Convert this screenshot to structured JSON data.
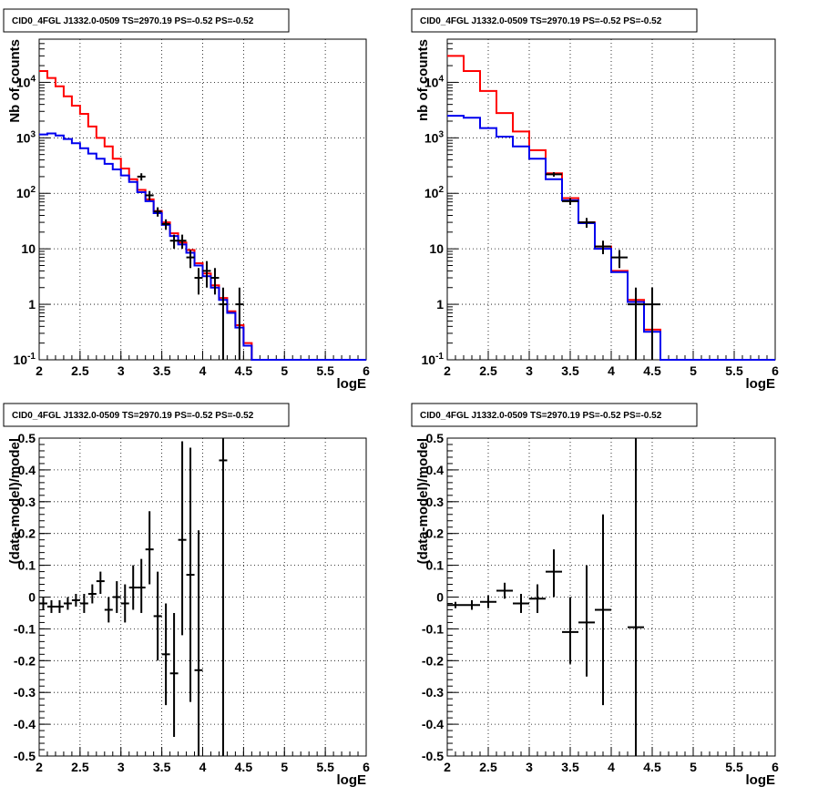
{
  "chart_data": [
    {
      "type": "histogram",
      "title": "CID0_4FGL J1332.0-0509 TS=2970.19 PS=-0.52 PS=-0.52",
      "xlabel": "logE",
      "ylabel": "Nb of counts",
      "xlim": [
        2,
        6
      ],
      "ylim": [
        0.1,
        60000
      ],
      "yscale": "log",
      "grid": true,
      "xticks": [
        "2",
        "2.5",
        "3",
        "3.5",
        "4",
        "4.5",
        "5",
        "5.5",
        "6"
      ],
      "yticks": [
        {
          "v": 0.1,
          "label": "10^-1"
        },
        {
          "v": 1,
          "label": "1"
        },
        {
          "v": 10,
          "label": "10"
        },
        {
          "v": 100,
          "label": "10^2"
        },
        {
          "v": 1000,
          "label": "10^3"
        },
        {
          "v": 10000,
          "label": "10^4"
        }
      ],
      "edges": [
        2.0,
        2.1,
        2.2,
        2.3,
        2.4,
        2.5,
        2.6,
        2.7,
        2.8,
        2.9,
        3.0,
        3.1,
        3.2,
        3.3,
        3.4,
        3.5,
        3.6,
        3.7,
        3.8,
        3.9,
        4.0,
        4.1,
        4.2,
        4.3,
        4.4,
        4.5,
        4.6,
        4.7,
        4.8,
        4.9,
        5.0,
        5.1,
        5.2,
        5.3,
        5.4,
        5.5,
        5.6,
        5.7,
        5.8,
        5.9,
        6.0
      ],
      "series": [
        {
          "color": "#ff0000",
          "values": [
            16000,
            12000,
            8500,
            5600,
            3800,
            2700,
            1600,
            1000,
            700,
            420,
            280,
            180,
            115,
            78,
            48,
            30,
            19,
            13,
            9.5,
            5.5,
            3.6,
            2.2,
            1.3,
            0.75,
            0.42,
            0.2,
            0.1,
            0.1,
            0.1,
            0.1,
            0.1,
            0.1,
            0.1,
            0.1,
            0.1,
            0.1,
            0.1,
            0.1,
            0.1,
            0.1
          ]
        },
        {
          "color": "#0000ee",
          "values": [
            1150,
            1200,
            1100,
            950,
            800,
            650,
            520,
            420,
            340,
            270,
            210,
            160,
            105,
            72,
            44,
            27,
            17,
            12,
            8.5,
            5,
            3.2,
            2,
            1.2,
            0.7,
            0.38,
            0.18,
            0.1,
            0.1,
            0.1,
            0.1,
            0.1,
            0.1,
            0.1,
            0.1,
            0.1,
            0.1,
            0.1,
            0.1,
            0.1,
            0.1
          ]
        }
      ],
      "points": [
        {
          "x": 3.25,
          "y": 200,
          "xerr": 0.05,
          "ylo": 170,
          "yhi": 230
        },
        {
          "x": 3.35,
          "y": 92,
          "xerr": 0.05,
          "ylo": 75,
          "yhi": 110
        },
        {
          "x": 3.45,
          "y": 47,
          "xerr": 0.05,
          "ylo": 38,
          "yhi": 56
        },
        {
          "x": 3.55,
          "y": 28,
          "xerr": 0.05,
          "ylo": 22,
          "yhi": 34
        },
        {
          "x": 3.65,
          "y": 14,
          "xerr": 0.05,
          "ylo": 10,
          "yhi": 18
        },
        {
          "x": 3.75,
          "y": 14,
          "xerr": 0.05,
          "ylo": 10,
          "yhi": 18
        },
        {
          "x": 3.85,
          "y": 7,
          "xerr": 0.05,
          "ylo": 4.5,
          "yhi": 9.5
        },
        {
          "x": 3.95,
          "y": 3,
          "xerr": 0.05,
          "ylo": 1.5,
          "yhi": 4.5
        },
        {
          "x": 4.05,
          "y": 4,
          "xerr": 0.05,
          "ylo": 2,
          "yhi": 6
        },
        {
          "x": 4.15,
          "y": 3,
          "xerr": 0.05,
          "ylo": 1.5,
          "yhi": 4.5
        },
        {
          "x": 4.25,
          "y": 1,
          "xerr": 0.05,
          "ylo": 0.1,
          "yhi": 2
        },
        {
          "x": 4.45,
          "y": 1,
          "xerr": 0.05,
          "ylo": 0.1,
          "yhi": 2
        }
      ]
    },
    {
      "type": "histogram",
      "title": "CID0_4FGL J1332.0-0509 TS=2970.19 PS=-0.52 PS=-0.52",
      "xlabel": "logE",
      "ylabel": "nb of counts",
      "xlim": [
        2,
        6
      ],
      "ylim": [
        0.1,
        60000
      ],
      "yscale": "log",
      "grid": true,
      "xticks": [
        "2",
        "2.5",
        "3",
        "3.5",
        "4",
        "4.5",
        "5",
        "5.5",
        "6"
      ],
      "yticks": [
        {
          "v": 0.1,
          "label": "10^-1"
        },
        {
          "v": 1,
          "label": "1"
        },
        {
          "v": 10,
          "label": "10"
        },
        {
          "v": 100,
          "label": "10^2"
        },
        {
          "v": 1000,
          "label": "10^3"
        },
        {
          "v": 10000,
          "label": "10^4"
        }
      ],
      "edges": [
        2.0,
        2.2,
        2.4,
        2.6,
        2.8,
        3.0,
        3.2,
        3.4,
        3.6,
        3.8,
        4.0,
        4.2,
        4.4,
        4.6,
        4.8,
        5.0,
        5.2,
        5.4,
        5.6,
        5.8,
        6.0
      ],
      "series": [
        {
          "color": "#ff0000",
          "values": [
            30000,
            16000,
            7000,
            2800,
            1300,
            600,
            230,
            82,
            30,
            11,
            4,
            1.2,
            0.35,
            0.1,
            0.1,
            0.1,
            0.1,
            0.1,
            0.1,
            0.1
          ]
        },
        {
          "color": "#0000ee",
          "values": [
            2500,
            2300,
            1500,
            1050,
            700,
            420,
            180,
            75,
            29,
            10,
            3.8,
            1.1,
            0.32,
            0.1,
            0.1,
            0.1,
            0.1,
            0.1,
            0.1,
            0.1
          ]
        }
      ],
      "points": [
        {
          "x": 3.3,
          "y": 220,
          "xerr": 0.1,
          "ylo": 200,
          "yhi": 240
        },
        {
          "x": 3.5,
          "y": 72,
          "xerr": 0.1,
          "ylo": 62,
          "yhi": 82
        },
        {
          "x": 3.7,
          "y": 30,
          "xerr": 0.1,
          "ylo": 24,
          "yhi": 36
        },
        {
          "x": 3.9,
          "y": 11,
          "xerr": 0.1,
          "ylo": 8,
          "yhi": 14
        },
        {
          "x": 4.1,
          "y": 7,
          "xerr": 0.1,
          "ylo": 4.5,
          "yhi": 9.5
        },
        {
          "x": 4.3,
          "y": 1,
          "xerr": 0.1,
          "ylo": 0.1,
          "yhi": 2
        },
        {
          "x": 4.5,
          "y": 1,
          "xerr": 0.1,
          "ylo": 0.1,
          "yhi": 2
        }
      ]
    },
    {
      "type": "scatter",
      "title": "CID0_4FGL J1332.0-0509 TS=2970.19 PS=-0.52 PS=-0.52",
      "xlabel": "logE",
      "ylabel": "(data-model)/model",
      "xlim": [
        2,
        6
      ],
      "ylim": [
        -0.5,
        0.5
      ],
      "yscale": "linear",
      "grid": true,
      "xticks": [
        "2",
        "2.5",
        "3",
        "3.5",
        "4",
        "4.5",
        "5",
        "5.5",
        "6"
      ],
      "yticks": [
        {
          "v": -0.5,
          "label": "-0.5"
        },
        {
          "v": -0.4,
          "label": "-0.4"
        },
        {
          "v": -0.3,
          "label": "-0.3"
        },
        {
          "v": -0.2,
          "label": "-0.2"
        },
        {
          "v": -0.1,
          "label": "-0.1"
        },
        {
          "v": 0,
          "label": "0"
        },
        {
          "v": 0.1,
          "label": "0.1"
        },
        {
          "v": 0.2,
          "label": "0.2"
        },
        {
          "v": 0.3,
          "label": "0.3"
        },
        {
          "v": 0.4,
          "label": "0.4"
        },
        {
          "v": 0.5,
          "label": "0.5"
        }
      ],
      "points": [
        {
          "x": 2.05,
          "y": -0.02,
          "xerr": 0.05,
          "ylo": -0.04,
          "yhi": 0.0
        },
        {
          "x": 2.15,
          "y": -0.03,
          "xerr": 0.05,
          "ylo": -0.05,
          "yhi": -0.01
        },
        {
          "x": 2.25,
          "y": -0.03,
          "xerr": 0.05,
          "ylo": -0.05,
          "yhi": -0.01
        },
        {
          "x": 2.35,
          "y": -0.02,
          "xerr": 0.05,
          "ylo": -0.04,
          "yhi": 0.0
        },
        {
          "x": 2.45,
          "y": -0.01,
          "xerr": 0.05,
          "ylo": -0.03,
          "yhi": 0.01
        },
        {
          "x": 2.55,
          "y": -0.02,
          "xerr": 0.05,
          "ylo": -0.05,
          "yhi": 0.01
        },
        {
          "x": 2.65,
          "y": 0.01,
          "xerr": 0.05,
          "ylo": -0.02,
          "yhi": 0.04
        },
        {
          "x": 2.75,
          "y": 0.05,
          "xerr": 0.05,
          "ylo": 0.01,
          "yhi": 0.08
        },
        {
          "x": 2.85,
          "y": -0.04,
          "xerr": 0.05,
          "ylo": -0.08,
          "yhi": 0.0
        },
        {
          "x": 2.95,
          "y": 0.0,
          "xerr": 0.05,
          "ylo": -0.05,
          "yhi": 0.05
        },
        {
          "x": 3.05,
          "y": -0.02,
          "xerr": 0.05,
          "ylo": -0.08,
          "yhi": 0.04
        },
        {
          "x": 3.15,
          "y": 0.03,
          "xerr": 0.05,
          "ylo": -0.04,
          "yhi": 0.1
        },
        {
          "x": 3.25,
          "y": 0.03,
          "xerr": 0.05,
          "ylo": -0.05,
          "yhi": 0.12
        },
        {
          "x": 3.35,
          "y": 0.15,
          "xerr": 0.05,
          "ylo": 0.04,
          "yhi": 0.27
        },
        {
          "x": 3.45,
          "y": -0.06,
          "xerr": 0.05,
          "ylo": -0.2,
          "yhi": 0.08
        },
        {
          "x": 3.55,
          "y": -0.18,
          "xerr": 0.05,
          "ylo": -0.34,
          "yhi": -0.02
        },
        {
          "x": 3.65,
          "y": -0.24,
          "xerr": 0.05,
          "ylo": -0.44,
          "yhi": -0.05
        },
        {
          "x": 3.75,
          "y": 0.18,
          "xerr": 0.05,
          "ylo": -0.12,
          "yhi": 0.49
        },
        {
          "x": 3.85,
          "y": 0.07,
          "xerr": 0.05,
          "ylo": -0.33,
          "yhi": 0.47
        },
        {
          "x": 3.95,
          "y": -0.23,
          "xerr": 0.05,
          "ylo": -0.5,
          "yhi": 0.21
        },
        {
          "x": 4.25,
          "y": 0.43,
          "xerr": 0.05,
          "ylo": -0.5,
          "yhi": 0.5
        }
      ]
    },
    {
      "type": "scatter",
      "title": "CID0_4FGL J1332.0-0509 TS=2970.19 PS=-0.52 PS=-0.52",
      "xlabel": "logE",
      "ylabel": "(data-model)/model",
      "xlim": [
        2,
        6
      ],
      "ylim": [
        -0.5,
        0.5
      ],
      "yscale": "linear",
      "grid": true,
      "xticks": [
        "2",
        "2.5",
        "3",
        "3.5",
        "4",
        "4.5",
        "5",
        "5.5",
        "6"
      ],
      "yticks": [
        {
          "v": -0.5,
          "label": "-0.5"
        },
        {
          "v": -0.4,
          "label": "-0.4"
        },
        {
          "v": -0.3,
          "label": "-0.3"
        },
        {
          "v": -0.2,
          "label": "-0.2"
        },
        {
          "v": -0.1,
          "label": "-0.1"
        },
        {
          "v": 0,
          "label": "0"
        },
        {
          "v": 0.1,
          "label": "0.1"
        },
        {
          "v": 0.2,
          "label": "0.2"
        },
        {
          "v": 0.3,
          "label": "0.3"
        },
        {
          "v": 0.4,
          "label": "0.4"
        },
        {
          "v": 0.5,
          "label": "0.5"
        }
      ],
      "points": [
        {
          "x": 2.1,
          "y": -0.025,
          "xerr": 0.1,
          "ylo": -0.035,
          "yhi": -0.015
        },
        {
          "x": 2.3,
          "y": -0.025,
          "xerr": 0.1,
          "ylo": -0.04,
          "yhi": -0.01
        },
        {
          "x": 2.5,
          "y": -0.015,
          "xerr": 0.1,
          "ylo": -0.035,
          "yhi": 0.005
        },
        {
          "x": 2.7,
          "y": 0.02,
          "xerr": 0.1,
          "ylo": -0.005,
          "yhi": 0.045
        },
        {
          "x": 2.9,
          "y": -0.02,
          "xerr": 0.1,
          "ylo": -0.05,
          "yhi": 0.01
        },
        {
          "x": 3.1,
          "y": -0.005,
          "xerr": 0.1,
          "ylo": -0.05,
          "yhi": 0.04
        },
        {
          "x": 3.3,
          "y": 0.08,
          "xerr": 0.1,
          "ylo": 0.0,
          "yhi": 0.15
        },
        {
          "x": 3.5,
          "y": -0.11,
          "xerr": 0.1,
          "ylo": -0.21,
          "yhi": 0.0
        },
        {
          "x": 3.7,
          "y": -0.08,
          "xerr": 0.1,
          "ylo": -0.25,
          "yhi": 0.1
        },
        {
          "x": 3.9,
          "y": -0.04,
          "xerr": 0.1,
          "ylo": -0.34,
          "yhi": 0.26
        },
        {
          "x": 4.3,
          "y": -0.095,
          "xerr": 0.1,
          "ylo": -0.5,
          "yhi": 0.5
        }
      ]
    }
  ]
}
